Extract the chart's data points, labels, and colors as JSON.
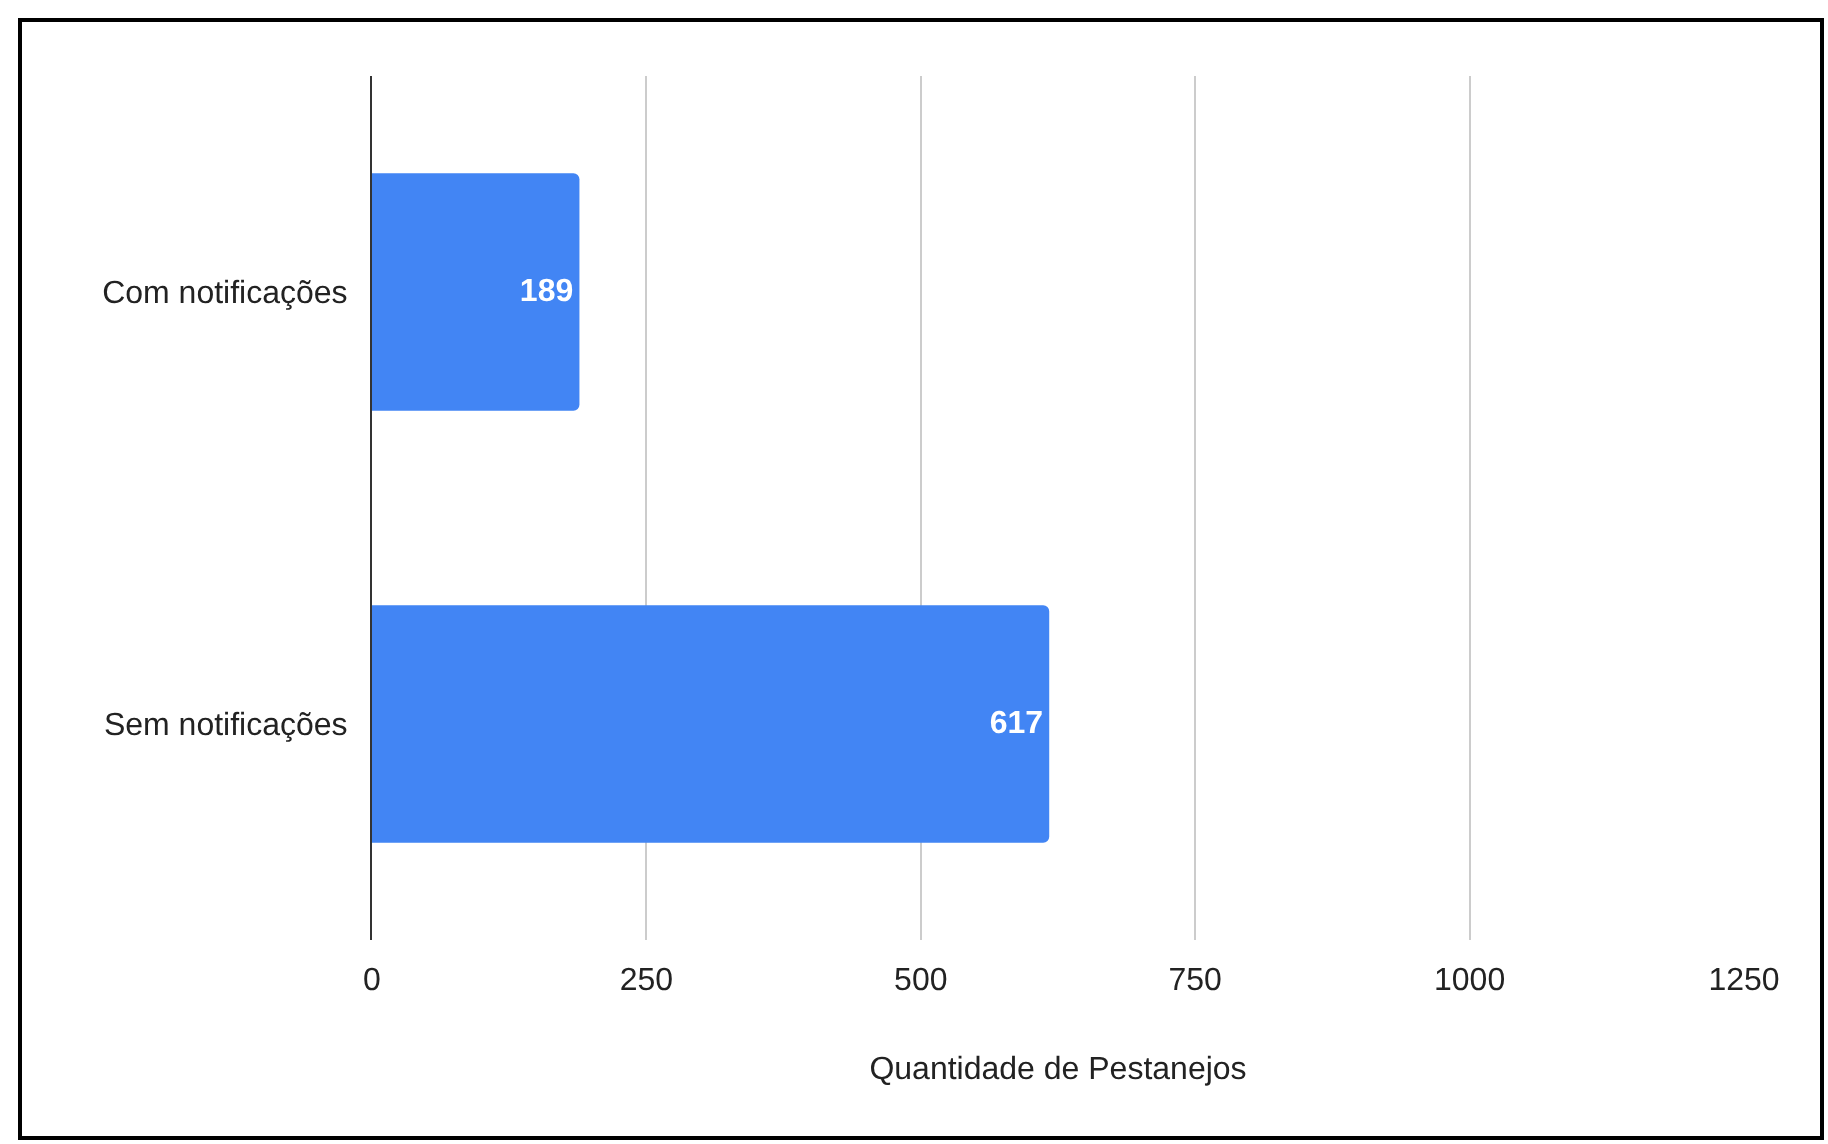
{
  "chart_data": {
    "type": "bar",
    "orientation": "horizontal",
    "categories": [
      "Com notificações",
      "Sem notificações"
    ],
    "values": [
      189,
      617
    ],
    "color": "#4285f4",
    "data_labels": true,
    "xlabel": "Quantidade de Pestanejos",
    "xlim": [
      0,
      1250
    ],
    "xticks": [
      0,
      250,
      500,
      750,
      1000,
      1250
    ],
    "grid": "x"
  }
}
